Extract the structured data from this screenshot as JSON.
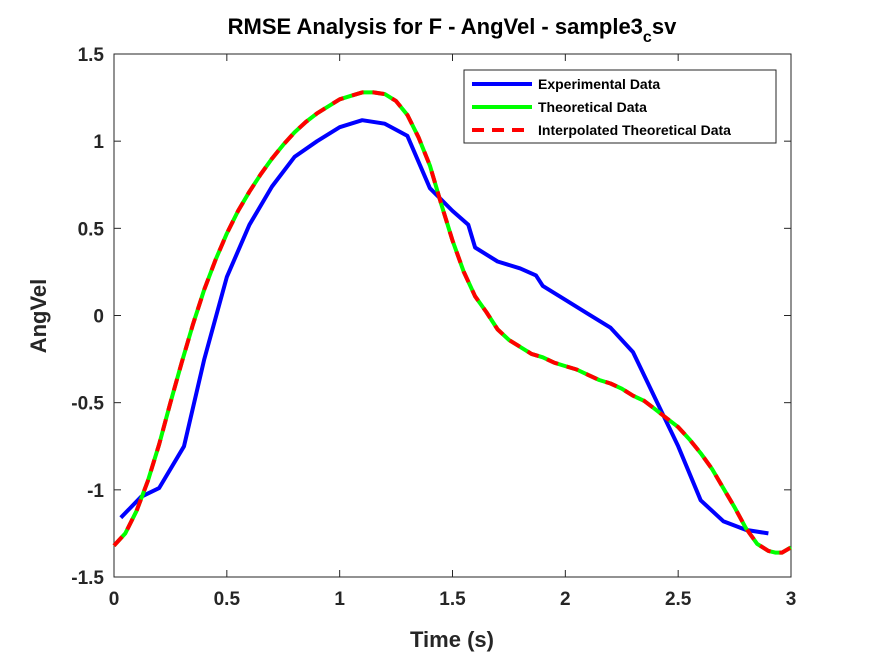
{
  "chart_data": {
    "type": "line",
    "title_main": "RMSE Analysis for F - AngVel - sample3",
    "title_sub": "c",
    "title_tail": "sv",
    "xlabel": "Time (s)",
    "ylabel": "AngVel",
    "xlim": [
      0,
      3
    ],
    "ylim": [
      -1.5,
      1.5
    ],
    "xticks": [
      0,
      0.5,
      1,
      1.5,
      2,
      2.5,
      3
    ],
    "xtick_labels": [
      "0",
      "0.5",
      "1",
      "1.5",
      "2",
      "2.5",
      "3"
    ],
    "yticks": [
      -1.5,
      -1,
      -0.5,
      0,
      0.5,
      1,
      1.5
    ],
    "ytick_labels": [
      "-1.5",
      "-1",
      "-0.5",
      "0",
      "0.5",
      "1",
      "1.5"
    ],
    "grid": false,
    "legend_position": "top-right",
    "series": [
      {
        "name": "Experimental Data",
        "color": "#0000ff",
        "style": "solid",
        "x": [
          0.03,
          0.12,
          0.2,
          0.31,
          0.4,
          0.5,
          0.6,
          0.7,
          0.8,
          0.9,
          1.0,
          1.1,
          1.2,
          1.3,
          1.4,
          1.5,
          1.57,
          1.6,
          1.7,
          1.8,
          1.87,
          1.9,
          2.0,
          2.1,
          2.2,
          2.3,
          2.4,
          2.5,
          2.6,
          2.7,
          2.8,
          2.9
        ],
        "y": [
          -1.16,
          -1.04,
          -0.99,
          -0.75,
          -0.25,
          0.22,
          0.52,
          0.74,
          0.91,
          1.0,
          1.08,
          1.12,
          1.1,
          1.03,
          0.73,
          0.6,
          0.52,
          0.39,
          0.31,
          0.27,
          0.23,
          0.17,
          0.09,
          0.01,
          -0.07,
          -0.21,
          -0.48,
          -0.75,
          -1.06,
          -1.18,
          -1.23,
          -1.25
        ]
      },
      {
        "name": "Theoretical Data",
        "color": "#00ff00",
        "style": "solid",
        "x": [
          0.0,
          0.05,
          0.1,
          0.15,
          0.2,
          0.25,
          0.3,
          0.35,
          0.4,
          0.45,
          0.5,
          0.55,
          0.6,
          0.65,
          0.7,
          0.75,
          0.8,
          0.85,
          0.9,
          0.95,
          1.0,
          1.05,
          1.1,
          1.15,
          1.2,
          1.25,
          1.3,
          1.35,
          1.4,
          1.45,
          1.5,
          1.55,
          1.6,
          1.65,
          1.7,
          1.75,
          1.8,
          1.85,
          1.9,
          1.95,
          2.0,
          2.05,
          2.1,
          2.15,
          2.2,
          2.25,
          2.3,
          2.35,
          2.4,
          2.45,
          2.5,
          2.55,
          2.6,
          2.65,
          2.7,
          2.75,
          2.8,
          2.85,
          2.9,
          2.93,
          2.96,
          3.0
        ],
        "y": [
          -1.32,
          -1.25,
          -1.12,
          -0.95,
          -0.74,
          -0.5,
          -0.27,
          -0.05,
          0.15,
          0.32,
          0.47,
          0.6,
          0.71,
          0.81,
          0.9,
          0.98,
          1.05,
          1.11,
          1.16,
          1.2,
          1.24,
          1.26,
          1.28,
          1.28,
          1.27,
          1.23,
          1.15,
          1.02,
          0.86,
          0.64,
          0.43,
          0.25,
          0.11,
          0.02,
          -0.08,
          -0.14,
          -0.18,
          -0.22,
          -0.24,
          -0.27,
          -0.29,
          -0.31,
          -0.34,
          -0.37,
          -0.39,
          -0.42,
          -0.46,
          -0.49,
          -0.54,
          -0.59,
          -0.64,
          -0.71,
          -0.79,
          -0.88,
          -0.99,
          -1.1,
          -1.22,
          -1.31,
          -1.35,
          -1.36,
          -1.36,
          -1.33
        ]
      },
      {
        "name": "Interpolated Theoretical Data",
        "color": "#ff0000",
        "style": "dashed",
        "x": [
          0.0,
          0.05,
          0.1,
          0.15,
          0.2,
          0.25,
          0.3,
          0.35,
          0.4,
          0.45,
          0.5,
          0.55,
          0.6,
          0.65,
          0.7,
          0.75,
          0.8,
          0.85,
          0.9,
          0.95,
          1.0,
          1.05,
          1.1,
          1.15,
          1.2,
          1.25,
          1.3,
          1.35,
          1.4,
          1.45,
          1.5,
          1.55,
          1.6,
          1.65,
          1.7,
          1.75,
          1.8,
          1.85,
          1.9,
          1.95,
          2.0,
          2.05,
          2.1,
          2.15,
          2.2,
          2.25,
          2.3,
          2.35,
          2.4,
          2.45,
          2.5,
          2.55,
          2.6,
          2.65,
          2.7,
          2.75,
          2.8,
          2.85,
          2.9,
          2.93,
          2.96,
          3.0
        ],
        "y": [
          -1.32,
          -1.25,
          -1.12,
          -0.95,
          -0.74,
          -0.5,
          -0.27,
          -0.05,
          0.15,
          0.32,
          0.47,
          0.6,
          0.71,
          0.81,
          0.9,
          0.98,
          1.05,
          1.11,
          1.16,
          1.2,
          1.24,
          1.26,
          1.28,
          1.28,
          1.27,
          1.23,
          1.15,
          1.02,
          0.86,
          0.64,
          0.43,
          0.25,
          0.11,
          0.02,
          -0.08,
          -0.14,
          -0.18,
          -0.22,
          -0.24,
          -0.27,
          -0.29,
          -0.31,
          -0.34,
          -0.37,
          -0.39,
          -0.42,
          -0.46,
          -0.49,
          -0.54,
          -0.59,
          -0.64,
          -0.71,
          -0.79,
          -0.88,
          -0.99,
          -1.1,
          -1.22,
          -1.31,
          -1.35,
          -1.36,
          -1.36,
          -1.33
        ]
      }
    ]
  }
}
